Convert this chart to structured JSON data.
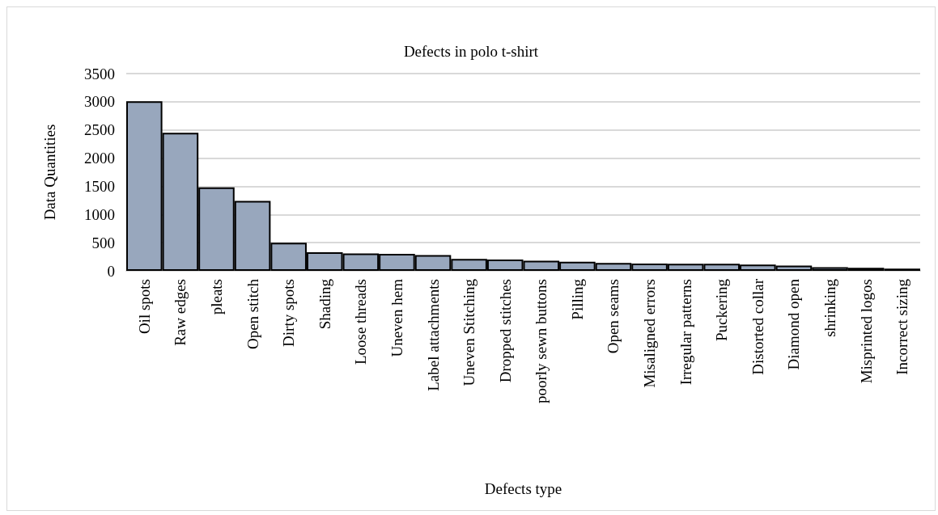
{
  "chart_data": {
    "type": "bar",
    "title": "Defects in polo t-shirt",
    "xlabel": "Defects type",
    "ylabel": "Data Quantities",
    "categories": [
      "Oil spots",
      "Raw edges",
      "pleats",
      "Open stitch",
      "Dirty spots",
      "Shading",
      "Loose threads",
      "Uneven hem",
      "Label attachments",
      "Uneven Stitching",
      "Dropped stitches",
      "poorly sewn buttons",
      "Pilling",
      "Open seams",
      "Misaligned errors",
      "Irregular patterns",
      "Puckering",
      "Distorted collar",
      "Diamond open",
      "shrinking",
      "Misprinted logos",
      "Incorrect sizing"
    ],
    "values": [
      3010,
      2450,
      1480,
      1240,
      500,
      330,
      310,
      300,
      280,
      210,
      200,
      180,
      160,
      140,
      130,
      125,
      125,
      110,
      95,
      65,
      55,
      40
    ],
    "color": "#98a7bd",
    "ylim": [
      0,
      3500
    ],
    "yticks": [
      0,
      500,
      1000,
      1500,
      2000,
      2500,
      3000,
      3500
    ],
    "grid": "y"
  }
}
